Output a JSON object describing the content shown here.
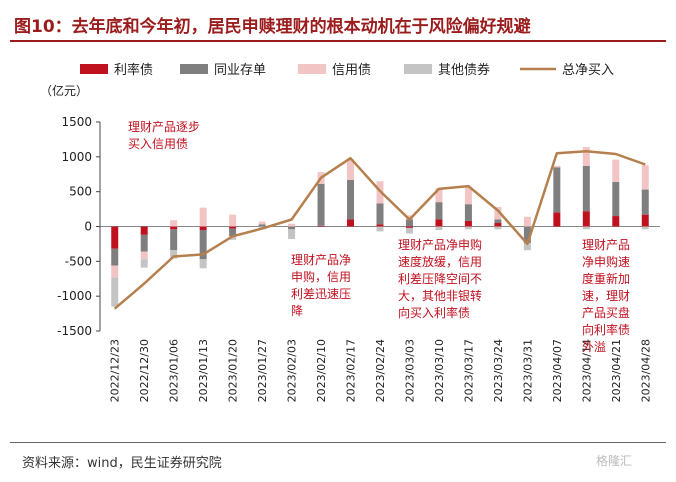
{
  "title": "图10：去年底和今年初，居民申赎理财的根本动机在于风险偏好规避",
  "source": "资料来源：wind，民生证券研究院",
  "watermark": "格隆汇",
  "colors": {
    "利率债": "#c0111f",
    "同业存单": "#7f7f7f",
    "信用债": "#f2c4c4",
    "其他债券": "#c4c4c4",
    "总净买入": "#b5804d",
    "annotation": "#c0111f"
  },
  "chart_data": {
    "type": "bar",
    "stacked": true,
    "unit_label": "（亿元）",
    "categories": [
      "2022/12/23",
      "2022/12/30",
      "2023/01/06",
      "2023/01/13",
      "2023/01/20",
      "2023/01/27",
      "2023/02/03",
      "2023/02/10",
      "2023/02/17",
      "2023/02/24",
      "2023/03/03",
      "2023/03/10",
      "2023/03/17",
      "2023/03/24",
      "2023/03/31",
      "2023/04/07",
      "2023/04/14",
      "2023/04/21",
      "2023/04/28"
    ],
    "series": [
      {
        "name": "利率债",
        "type": "bar",
        "values": [
          -320,
          -120,
          -40,
          -50,
          -30,
          0,
          0,
          10,
          100,
          30,
          -20,
          100,
          80,
          50,
          0,
          200,
          220,
          150,
          170
        ]
      },
      {
        "name": "同业存单",
        "type": "bar",
        "values": [
          -240,
          -240,
          -300,
          -420,
          -110,
          30,
          -40,
          600,
          570,
          300,
          100,
          250,
          240,
          50,
          -240,
          650,
          650,
          490,
          360
        ]
      },
      {
        "name": "信用债",
        "type": "bar",
        "values": [
          -170,
          -110,
          90,
          270,
          170,
          40,
          40,
          170,
          290,
          320,
          60,
          200,
          250,
          180,
          140,
          20,
          270,
          320,
          350
        ]
      },
      {
        "name": "其他债券",
        "type": "bar",
        "values": [
          -420,
          -120,
          -120,
          -130,
          -50,
          -40,
          -140,
          0,
          0,
          -70,
          -80,
          -50,
          -40,
          -40,
          -100,
          0,
          -40,
          0,
          -40
        ]
      },
      {
        "name": "总净买入",
        "type": "line",
        "values": [
          -1180,
          -820,
          -430,
          -400,
          -140,
          -30,
          100,
          700,
          980,
          510,
          100,
          540,
          580,
          230,
          -250,
          1050,
          1080,
          1040,
          890
        ]
      }
    ],
    "ylim": [
      -1500,
      1500
    ],
    "yticks": [
      -1500,
      -1000,
      -500,
      0,
      500,
      1000,
      1500
    ],
    "annotations": [
      {
        "text": "理财产品逐步\n买入信用债"
      },
      {
        "text": "理财产品净\n申购，信用\n利差迅速压\n降"
      },
      {
        "text": "理财产品净申购\n速度放缓，信用\n利差压降空间不\n大，其他非银转\n向买入利率债"
      },
      {
        "text": "理财产品\n净申购速\n度重新加\n速，理财\n产品买盘\n向利率债\n外溢"
      }
    ]
  }
}
